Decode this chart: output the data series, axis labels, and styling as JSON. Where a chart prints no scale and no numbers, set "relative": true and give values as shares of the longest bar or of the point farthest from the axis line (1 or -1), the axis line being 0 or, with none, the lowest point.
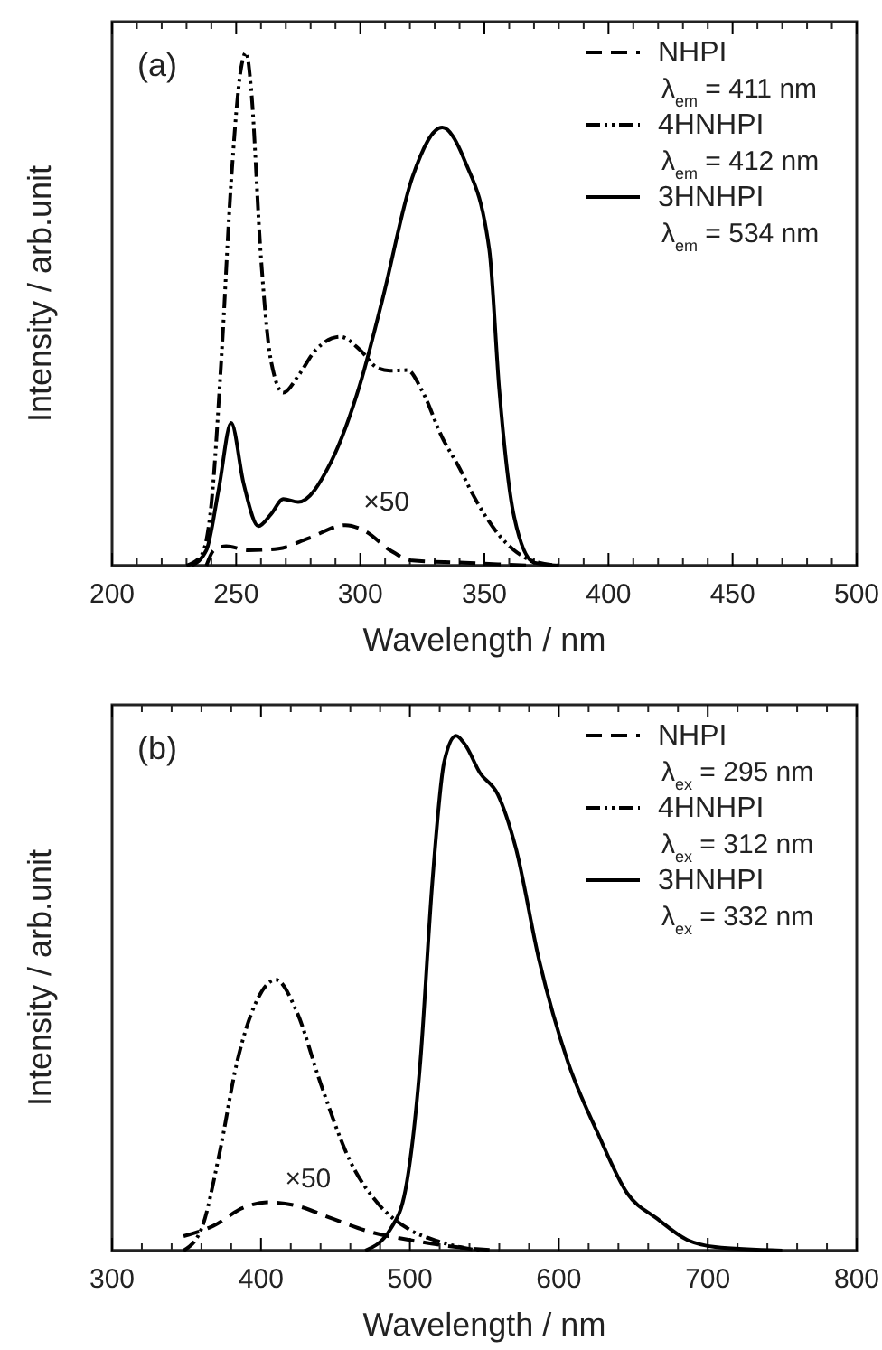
{
  "chart_data": [
    {
      "type": "line",
      "relative": true,
      "xlabel": "Wavelength / nm",
      "ylabel": "Intensity / arb.unit",
      "xlim": [
        200,
        500
      ],
      "xticks": [
        200,
        250,
        300,
        350,
        400,
        450,
        500
      ],
      "legend": "top right",
      "annotations": [
        "(a)",
        "×50"
      ],
      "series": [
        {
          "name": "NHPI\nλ$_{em}$ = 411 nm",
          "color": "#000000",
          "line_style": "dashed",
          "x": [
            238,
            241,
            246,
            255,
            267,
            279,
            294,
            302,
            312,
            321,
            340,
            370
          ],
          "values": [
            0,
            0.03,
            0.038,
            0.03,
            0.033,
            0.053,
            0.079,
            0.067,
            0.03,
            0.01,
            0.006,
            0
          ]
        },
        {
          "name": "4HNHPI\nλ$_{em}$ = 412 nm",
          "color": "#000000",
          "line_style": "dotted",
          "x": [
            230,
            236,
            240,
            244,
            248,
            252,
            254,
            256,
            260,
            264,
            269,
            275,
            282,
            292,
            300,
            307,
            312,
            319,
            325,
            333,
            340,
            345,
            350,
            356,
            362,
            368,
            380
          ],
          "values": [
            0,
            0.02,
            0.12,
            0.4,
            0.75,
            0.97,
            1,
            0.93,
            0.6,
            0.4,
            0.337,
            0.37,
            0.42,
            0.446,
            0.42,
            0.385,
            0.38,
            0.381,
            0.34,
            0.25,
            0.19,
            0.142,
            0.1,
            0.059,
            0.03,
            0.012,
            0
          ]
        },
        {
          "name": "3HNHPI\nλ$_{em}$ = 534 nm",
          "color": "#000000",
          "line_style": "solid",
          "x": [
            232,
            238,
            243,
            248,
            253,
            259,
            264,
            269,
            275,
            288,
            300,
            309,
            321,
            333,
            342,
            352,
            356,
            362,
            370,
            380
          ],
          "values": [
            0,
            0.03,
            0.15,
            0.278,
            0.16,
            0.077,
            0.1,
            0.13,
            0.124,
            0.2,
            0.355,
            0.52,
            0.757,
            0.854,
            0.79,
            0.615,
            0.343,
            0.095,
            0.006,
            0
          ]
        }
      ]
    },
    {
      "type": "line",
      "relative": true,
      "xlabel": "Wavelength / nm",
      "ylabel": "Intensity / arb.unit",
      "xlim": [
        300,
        800
      ],
      "xticks": [
        300,
        400,
        500,
        600,
        700,
        800
      ],
      "legend": "top right",
      "annotations": [
        "(b)",
        "×50"
      ],
      "series": [
        {
          "name": "NHPI\nλ$_{ex}$ = 295 nm",
          "color": "#000000",
          "line_style": "dashed",
          "x": [
            348,
            368,
            388,
            404,
            424,
            448,
            475,
            499,
            531,
            560
          ],
          "values": [
            0.028,
            0.048,
            0.083,
            0.094,
            0.087,
            0.062,
            0.035,
            0.021,
            0.007,
            0
          ]
        },
        {
          "name": "4HNHPI\nλ$_{ex}$ = 312 nm",
          "color": "#000000",
          "line_style": "dotted",
          "x": [
            348,
            360,
            372,
            384,
            396,
            410,
            424,
            440,
            460,
            479,
            499,
            519,
            547
          ],
          "values": [
            0,
            0.042,
            0.187,
            0.367,
            0.478,
            0.526,
            0.464,
            0.325,
            0.173,
            0.09,
            0.042,
            0.018,
            0
          ]
        },
        {
          "name": "3HNHPI\nλ$_{ex}$ = 332 nm",
          "color": "#000000",
          "line_style": "solid",
          "x": [
            470,
            487,
            497,
            507,
            515,
            523,
            531,
            537,
            547,
            559,
            571,
            587,
            606,
            626,
            646,
            666,
            686,
            705,
            750
          ],
          "values": [
            0,
            0.042,
            0.118,
            0.367,
            0.713,
            0.949,
            1,
            0.983,
            0.928,
            0.886,
            0.783,
            0.561,
            0.367,
            0.229,
            0.111,
            0.062,
            0.021,
            0.007,
            0
          ]
        }
      ]
    }
  ]
}
